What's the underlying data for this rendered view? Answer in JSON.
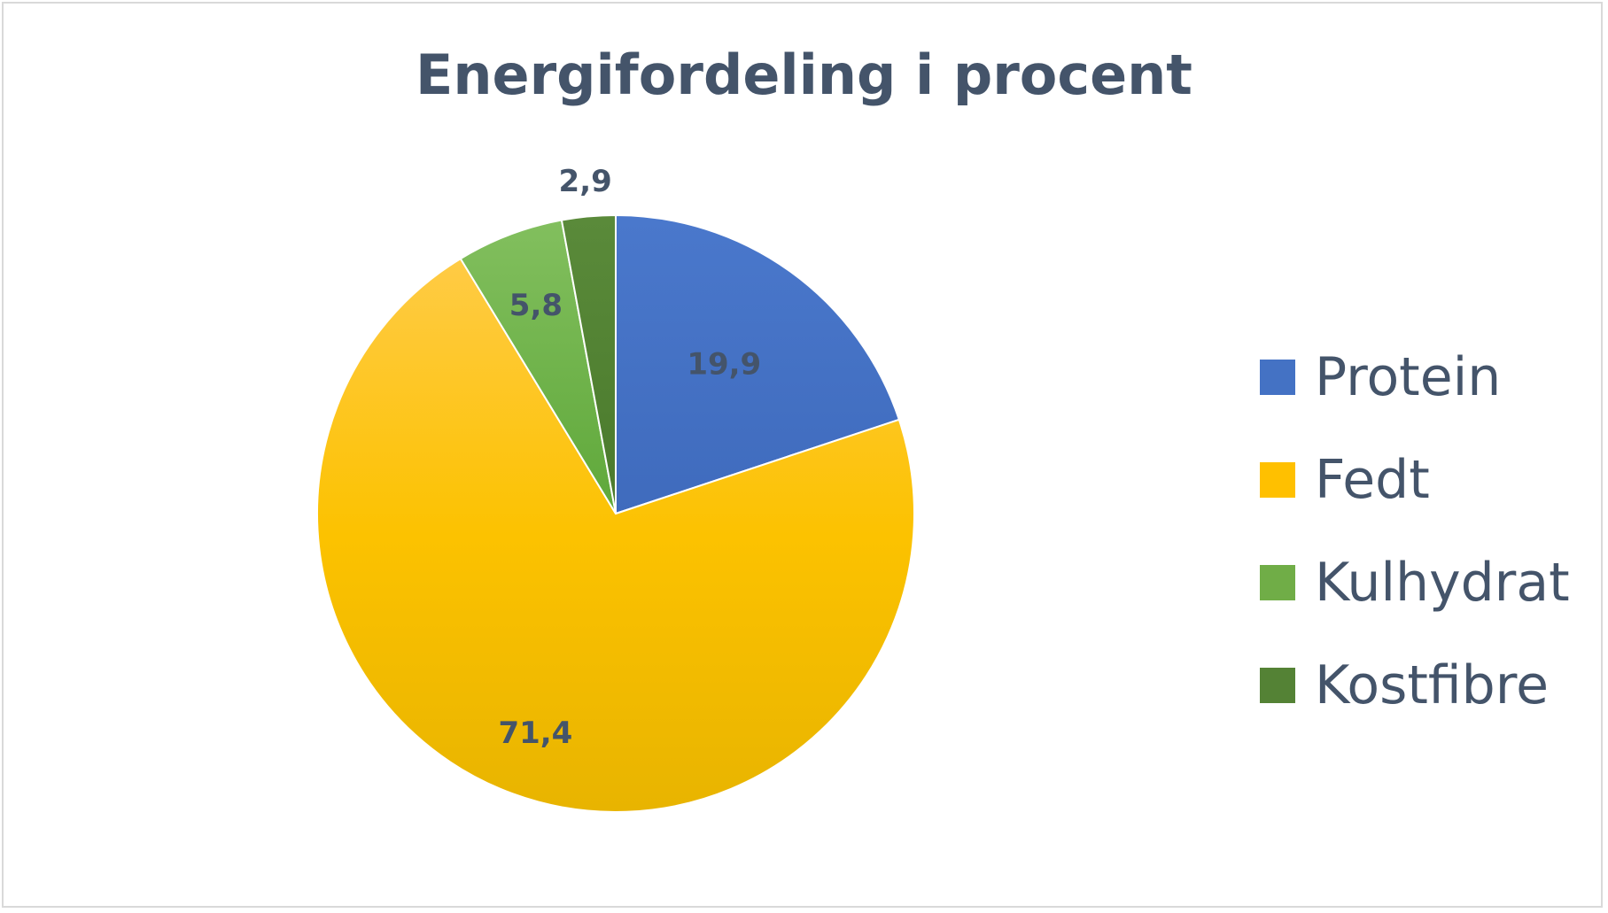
{
  "chart_data": {
    "type": "pie",
    "title": "Energifordeling i procent",
    "categories": [
      "Protein",
      "Fedt",
      "Kulhydrat",
      "Kostfibre"
    ],
    "values": [
      19.9,
      71.4,
      5.8,
      2.9
    ],
    "value_labels": [
      "19,9",
      "71,4",
      "5,8",
      "2,9"
    ],
    "colors": [
      "#4472c4",
      "#ffc000",
      "#70ad47",
      "#548235"
    ],
    "legend_position": "right",
    "start_angle": "12 o'clock, clockwise"
  }
}
